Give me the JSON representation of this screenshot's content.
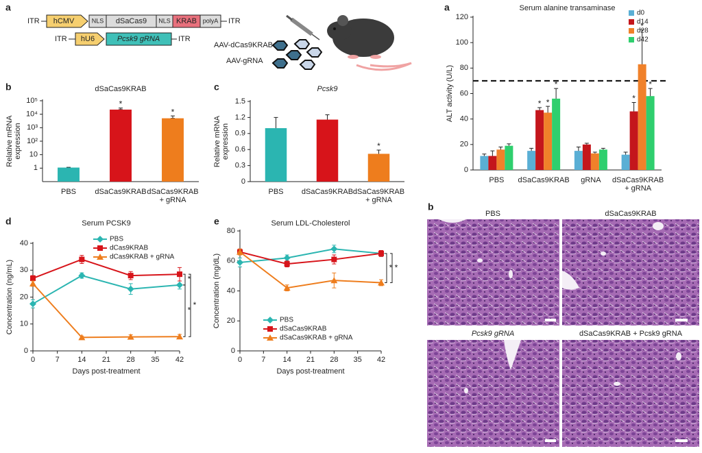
{
  "diagram": {
    "panel": "a",
    "itr": "ITR",
    "cassette": [
      "hCMV",
      "NLS",
      "dSaCas9",
      "NLS",
      "KRAB",
      "polyA"
    ],
    "promoter": "hU6",
    "grna": "Pcsk9 gRNA",
    "vectors": [
      "AAV-dCas9KRAB",
      "AAV-gRNA"
    ]
  },
  "histology": {
    "panel": "b",
    "labels": [
      "PBS",
      "dSaCas9KRAB",
      "Pcsk9 gRNA",
      "dSaCas9KRAB + Pcsk9 gRNA"
    ]
  },
  "chart_data": [
    {
      "type": "bar",
      "panel": "a",
      "title": "Serum alanine transaminase",
      "ylabel": "ALT activity (U/L)",
      "categories": [
        "PBS",
        "dSaCas9KRAB",
        "gRNA",
        [
          "dSaCas9KRAB",
          "+ gRNA"
        ]
      ],
      "series": [
        {
          "name": "d0",
          "color": "#5aafd5",
          "values": [
            11,
            15,
            15,
            12
          ],
          "errors": [
            1.5,
            2,
            3,
            2
          ]
        },
        {
          "name": "d14",
          "color": "#c4161c",
          "values": [
            11,
            47,
            20,
            46
          ],
          "errors": [
            4,
            2,
            1,
            7
          ],
          "annotations": [
            null,
            "*",
            null,
            "*"
          ]
        },
        {
          "name": "d28",
          "color": "#f0812a",
          "values": [
            16,
            45,
            13,
            83
          ],
          "errors": [
            2,
            5,
            1,
            27
          ],
          "annotations": [
            null,
            "*",
            null,
            "*"
          ]
        },
        {
          "name": "d42",
          "color": "#2fcf6e",
          "values": [
            19,
            56,
            16,
            58
          ],
          "errors": [
            1.5,
            8,
            1,
            6
          ],
          "annotations": [
            null,
            "*",
            null,
            "*"
          ]
        }
      ],
      "ylim": [
        0,
        120
      ],
      "yticks": [
        0,
        20,
        40,
        60,
        80,
        100,
        120
      ],
      "hline": 70,
      "legend": "upper right"
    },
    {
      "type": "bar",
      "panel": "b",
      "title": "dSaCas9KRAB",
      "ylabel": [
        "Relative mRNA",
        "expression"
      ],
      "categories": [
        "PBS",
        "dSaCas9KRAB",
        [
          "dSaCas9KRAB",
          "+ gRNA"
        ]
      ],
      "values": [
        1.1,
        22000,
        5000
      ],
      "errors": [
        0.05,
        7000,
        2500
      ],
      "colors": [
        "#2bb5b1",
        "#d7141a",
        "#ee7d1d"
      ],
      "annotations": [
        null,
        "*",
        "*"
      ],
      "log": true,
      "ylim": [
        0.1,
        100000
      ],
      "yticks": [
        1,
        10,
        {
          "value": 100,
          "label": "10²"
        },
        {
          "value": 1000,
          "label": "10³"
        },
        {
          "value": 10000,
          "label": "10⁴"
        },
        {
          "value": 100000,
          "label": "10⁵"
        }
      ]
    },
    {
      "type": "bar",
      "panel": "c",
      "title": "Pcsk9",
      "title_italic": true,
      "ylabel": [
        "Relative mRNA",
        "expression"
      ],
      "categories": [
        "PBS",
        "dSaCas9KRAB",
        [
          "dSaCas9KRAB",
          "+ gRNA"
        ]
      ],
      "values": [
        1.0,
        1.16,
        0.52
      ],
      "errors": [
        0.2,
        0.09,
        0.07
      ],
      "colors": [
        "#2bb5b1",
        "#d7141a",
        "#ee7d1d"
      ],
      "annotations": [
        null,
        null,
        "*"
      ],
      "ylim": [
        0,
        1.5
      ],
      "yticks": [
        0,
        0.3,
        0.6,
        0.9,
        1.2,
        1.5
      ]
    },
    {
      "type": "line",
      "panel": "d",
      "title": "Serum PCSK9",
      "xlabel": "Days post-treatment",
      "ylabel": "Concentration (ng/mL)",
      "x": [
        0,
        14,
        28,
        42
      ],
      "series": [
        {
          "name": "PBS",
          "color": "#2bb5b1",
          "marker": "diamond",
          "values": [
            17.5,
            28,
            23,
            24.5
          ],
          "errors": [
            1.5,
            1,
            2,
            1.5
          ]
        },
        {
          "name": "dCas9KRAB",
          "color": "#d7141a",
          "marker": "square",
          "values": [
            27,
            34,
            28,
            28.5
          ],
          "errors": [
            1,
            1.5,
            1.5,
            2.5
          ]
        },
        {
          "name": "dCas9KRAB + gRNA",
          "color": "#ee7d1d",
          "marker": "triangle",
          "values": [
            25,
            5,
            5.2,
            5.3
          ],
          "errors": [
            1,
            0.5,
            0.8,
            0.8
          ]
        }
      ],
      "xlim": [
        0,
        42
      ],
      "xticks": [
        0,
        7,
        14,
        21,
        28,
        35,
        42
      ],
      "ylim": [
        0,
        40
      ],
      "yticks": [
        0,
        10,
        20,
        30,
        40
      ],
      "legend": "upper right",
      "annotations": [
        "*",
        "*",
        "*"
      ]
    },
    {
      "type": "line",
      "panel": "e",
      "title": "Serum LDL-Cholesterol",
      "xlabel": "Days post-treatment",
      "ylabel": "Concentration (mg/dL)",
      "x": [
        0,
        14,
        28,
        42
      ],
      "series": [
        {
          "name": "PBS",
          "color": "#2bb5b1",
          "marker": "diamond",
          "values": [
            59,
            62,
            68,
            65
          ],
          "errors": [
            3,
            2,
            2.5,
            2
          ]
        },
        {
          "name": "dSaCas9KRAB",
          "color": "#d7141a",
          "marker": "square",
          "values": [
            66,
            58,
            61,
            65
          ],
          "errors": [
            2,
            2,
            3,
            2
          ]
        },
        {
          "name": "dSaCas9KRAB + gRNA",
          "color": "#ee7d1d",
          "marker": "triangle",
          "values": [
            66,
            42,
            47,
            45.5
          ],
          "errors": [
            2,
            2,
            5,
            2
          ]
        }
      ],
      "xlim": [
        0,
        42
      ],
      "xticks": [
        0,
        7,
        14,
        21,
        28,
        35,
        42
      ],
      "ylim": [
        0,
        80
      ],
      "yticks": [
        0,
        20,
        40,
        60,
        80
      ],
      "legend": "lower center",
      "annotations": [
        "*",
        "*"
      ]
    }
  ]
}
